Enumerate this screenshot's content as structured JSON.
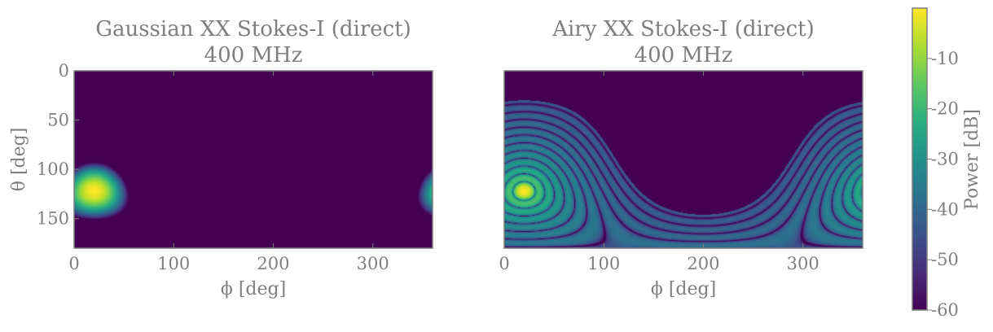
{
  "chart_data": [
    {
      "type": "heatmap",
      "title": "Gaussian XX Stokes-I (direct)",
      "subtitle": "400 MHz",
      "xlabel": "ϕ [deg]",
      "ylabel": "θ [deg]",
      "xlim": [
        0,
        360
      ],
      "ylim": [
        180,
        0
      ],
      "xticks": [
        0,
        100,
        200,
        300
      ],
      "yticks": [
        0,
        50,
        100,
        150
      ],
      "beam": {
        "model": "gaussian",
        "peak_phi": 20,
        "peak_theta": 122,
        "peak_db": 0,
        "floor_db": -60
      }
    },
    {
      "type": "heatmap",
      "title": "Airy XX Stokes-I (direct)",
      "subtitle": "400 MHz",
      "xlabel": "ϕ [deg]",
      "ylabel": "",
      "xlim": [
        0,
        360
      ],
      "ylim": [
        180,
        0
      ],
      "xticks": [
        0,
        100,
        200,
        300
      ],
      "yticks": [],
      "beam": {
        "model": "airy",
        "peak_phi": 20,
        "peak_theta": 122,
        "peak_db": 0,
        "floor_db": -60
      }
    }
  ],
  "colorbar": {
    "label": "Power [dB]",
    "range": [
      -60,
      0
    ],
    "ticks": [
      "-10",
      "-20",
      "-30",
      "-40",
      "-50",
      "-60"
    ],
    "tick_values": [
      -10,
      -20,
      -30,
      -40,
      -50,
      -60
    ],
    "colormap": "viridis"
  },
  "colors": {
    "text": "#7f7f7f",
    "spine": "#7f7f7f",
    "floor": "#440154"
  },
  "tick_labels": {
    "x": [
      "0",
      "100",
      "200",
      "300"
    ],
    "y": [
      "0",
      "50",
      "100",
      "150"
    ]
  }
}
